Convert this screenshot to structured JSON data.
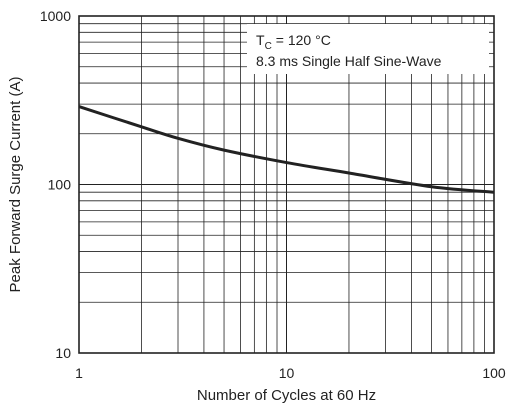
{
  "chart_data": {
    "type": "line",
    "title": "",
    "xlabel": "Number of Cycles at 60 Hz",
    "ylabel": "Peak Forward Surge Current (A)",
    "x_scale": "log",
    "y_scale": "log",
    "xlim": [
      1,
      100
    ],
    "ylim": [
      10,
      1000
    ],
    "grid": true,
    "x_ticks": [
      {
        "value": 1,
        "label": "1"
      },
      {
        "value": 10,
        "label": "10"
      },
      {
        "value": 100,
        "label": "100"
      }
    ],
    "y_ticks": [
      {
        "value": 10,
        "label": "10"
      },
      {
        "value": 100,
        "label": "100"
      },
      {
        "value": 1000,
        "label": "1000"
      }
    ],
    "annotation": {
      "tc_symbol": "T",
      "tc_subscript": "C",
      "tc_value": "= 120 °C",
      "waveform": "8.3 ms Single Half Sine-Wave"
    },
    "series": [
      {
        "x": [
          1,
          2,
          3,
          5,
          10,
          20,
          50,
          100
        ],
        "y": [
          290,
          220,
          188,
          160,
          135,
          117,
          97,
          90
        ]
      }
    ],
    "colors": {
      "line": "#222222",
      "grid": "#222222",
      "frame": "#222222"
    }
  }
}
